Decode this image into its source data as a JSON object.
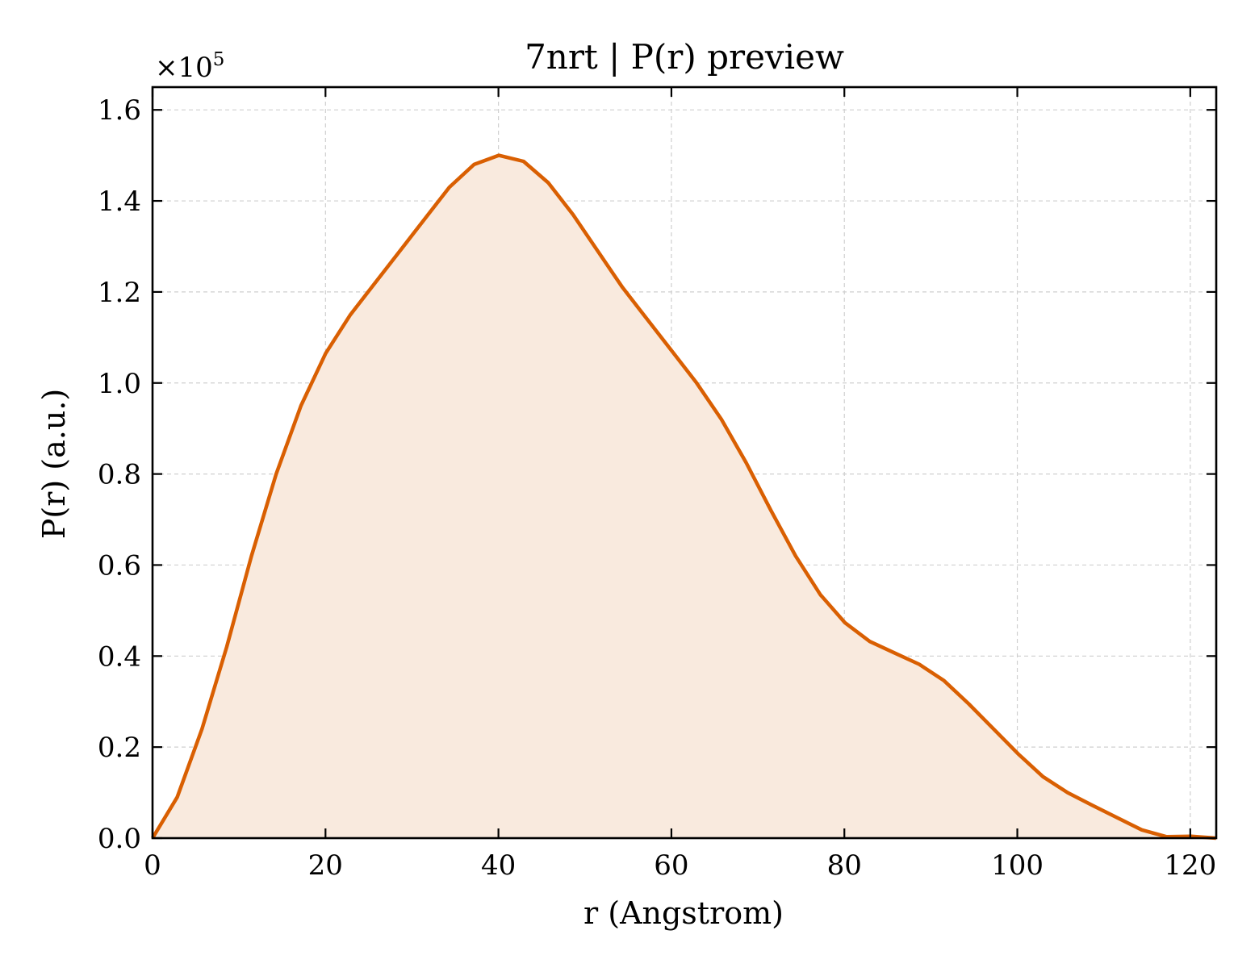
{
  "chart_data": {
    "type": "area",
    "title": "7nrt | P(r) preview",
    "xlabel": "r (Angstrom)",
    "ylabel": "P(r) (a.u.)",
    "y_multiplier": "×10",
    "y_multiplier_exp": "5",
    "xlim": [
      0,
      123
    ],
    "ylim": [
      0,
      1.65
    ],
    "xticks": [
      0,
      20,
      40,
      60,
      80,
      100,
      120
    ],
    "xtick_labels": [
      "0",
      "20",
      "40",
      "60",
      "80",
      "100",
      "120"
    ],
    "yticks": [
      0.0,
      0.2,
      0.4,
      0.6,
      0.8,
      1.0,
      1.2,
      1.4,
      1.6
    ],
    "ytick_labels": [
      "0.0",
      "0.2",
      "0.4",
      "0.6",
      "0.8",
      "1.0",
      "1.2",
      "1.4",
      "1.6"
    ],
    "grid": true,
    "line_color": "#d95f02",
    "fill_color": "#f9eade",
    "series": [
      {
        "x": [
          0,
          2.86,
          5.72,
          8.58,
          11.44,
          14.3,
          17.16,
          20.02,
          22.88,
          25.74,
          28.6,
          31.46,
          34.32,
          37.18,
          40.04,
          42.9,
          45.76,
          48.62,
          51.48,
          54.34,
          57.2,
          60.06,
          62.92,
          65.78,
          68.64,
          71.5,
          74.36,
          77.22,
          80.08,
          82.94,
          85.8,
          88.66,
          91.52,
          94.38,
          97.24,
          100.1,
          102.96,
          105.82,
          108.68,
          111.54,
          114.4,
          117.26,
          120.12,
          122.98
        ],
        "y": [
          0.0,
          0.09,
          0.24,
          0.42,
          0.62,
          0.8,
          0.95,
          1.065,
          1.15,
          1.22,
          1.29,
          1.36,
          1.43,
          1.48,
          1.5,
          1.487,
          1.44,
          1.37,
          1.29,
          1.21,
          1.14,
          1.07,
          1.0,
          0.92,
          0.825,
          0.72,
          0.62,
          0.535,
          0.473,
          0.432,
          0.407,
          0.382,
          0.346,
          0.295,
          0.24,
          0.185,
          0.135,
          0.1,
          0.072,
          0.045,
          0.018,
          0.003,
          0.004,
          0.0
        ]
      }
    ]
  }
}
